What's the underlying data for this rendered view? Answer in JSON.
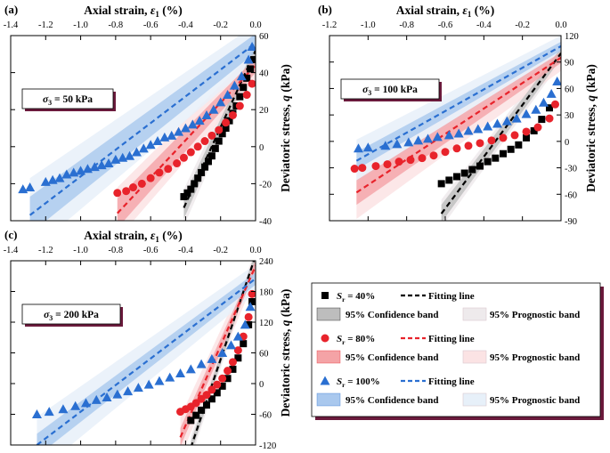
{
  "figure": {
    "legend": {
      "entries": [
        {
          "marker": "square",
          "sr_label": "S",
          "sr_sub": "r",
          "sr_value": " = 40%",
          "line_label": "Fitting line",
          "color": "#000000",
          "conf_label": "95% Confidence band",
          "conf_color": "#bdbdbd",
          "pred_label": "95% Prognostic band",
          "pred_color": "#eeeaec"
        },
        {
          "marker": "circle",
          "sr_label": "S",
          "sr_sub": "r",
          "sr_value": " = 80%",
          "line_label": "Fitting line",
          "color": "#e8232b",
          "conf_label": "95% Confidence band",
          "conf_color": "#f4a3a6",
          "pred_label": "95% Prognostic band",
          "pred_color": "#fbe3e4"
        },
        {
          "marker": "triangle",
          "sr_label": "S",
          "sr_sub": "r",
          "sr_value": " = 100%",
          "line_label": "Fitting line",
          "color": "#2a6fd1",
          "conf_label": "95% Confidence band",
          "conf_color": "#a9c8ee",
          "pred_label": "95% Prognostic band",
          "pred_color": "#e7f0f9"
        }
      ]
    }
  },
  "chart_data": [
    {
      "type": "scatter",
      "panel_label": "(a)",
      "condition": {
        "sigma": "σ",
        "sub": "3",
        "text": " = 50 kPa"
      },
      "xlabel": "Axial strain, ",
      "xlabel_symbol": "ε",
      "xlabel_sub": "1",
      "xlabel_unit": " (%)",
      "ylabel": "Deviatoric stress, ",
      "ylabel_symbol": "q",
      "ylabel_unit": " (kPa)",
      "xlim": [
        -1.4,
        0.0
      ],
      "ylim": [
        -40,
        60
      ],
      "xticks": [
        "-1.4",
        "-1.2",
        "-1.0",
        "-0.8",
        "-0.6",
        "-0.4",
        "-0.2",
        "0.0"
      ],
      "xtick_values": [
        -1.4,
        -1.2,
        -1.0,
        -0.8,
        -0.6,
        -0.4,
        -0.2,
        0.0
      ],
      "yticks": [
        "-40",
        "-20",
        "0",
        "20",
        "40",
        "60"
      ],
      "ytick_values": [
        -40,
        -20,
        0,
        20,
        40,
        60
      ],
      "series": [
        {
          "name": "Sr = 40%",
          "color": "#000000",
          "marker": "square",
          "x": [
            -0.41,
            -0.39,
            -0.37,
            -0.35,
            -0.33,
            -0.31,
            -0.29,
            -0.27,
            -0.25,
            -0.23,
            -0.21,
            -0.19,
            -0.17,
            -0.15,
            -0.13,
            -0.11,
            -0.09,
            -0.07,
            -0.05,
            -0.03,
            -0.01
          ],
          "y": [
            -27,
            -25,
            -23,
            -20,
            -17,
            -14,
            -11,
            -8,
            -5,
            -1,
            3,
            7,
            10,
            14,
            18,
            22,
            27,
            32,
            37,
            42,
            47
          ],
          "fit": [
            [
              -0.41,
              -33
            ],
            [
              0.0,
              52
            ]
          ],
          "conf": [
            6,
            3
          ],
          "pred": [
            10,
            6
          ]
        },
        {
          "name": "Sr = 80%",
          "color": "#e8232b",
          "marker": "circle",
          "x": [
            -0.79,
            -0.74,
            -0.7,
            -0.65,
            -0.6,
            -0.55,
            -0.5,
            -0.45,
            -0.41,
            -0.37,
            -0.33,
            -0.29,
            -0.25,
            -0.21,
            -0.17,
            -0.13,
            -0.09,
            -0.05,
            -0.02
          ],
          "y": [
            -25,
            -24,
            -22,
            -20,
            -17,
            -14,
            -12,
            -9,
            -6,
            -3,
            0,
            3,
            6,
            9,
            13,
            17,
            22,
            28,
            34
          ],
          "fit": [
            [
              -0.79,
              -36
            ],
            [
              0.0,
              44
            ]
          ],
          "conf": [
            8,
            4
          ],
          "pred": [
            14,
            8
          ]
        },
        {
          "name": "Sr = 100%",
          "color": "#2a6fd1",
          "marker": "triangle",
          "x": [
            -1.33,
            -1.29,
            -1.2,
            -1.16,
            -1.12,
            -1.08,
            -1.04,
            -1.0,
            -0.96,
            -0.92,
            -0.88,
            -0.84,
            -0.8,
            -0.76,
            -0.72,
            -0.68,
            -0.64,
            -0.6,
            -0.56,
            -0.52,
            -0.48,
            -0.44,
            -0.4,
            -0.36,
            -0.32,
            -0.28,
            -0.24,
            -0.2,
            -0.16,
            -0.12,
            -0.08,
            -0.04,
            -0.02
          ],
          "y": [
            -23,
            -22,
            -19,
            -18,
            -17,
            -15,
            -14,
            -13,
            -12,
            -11,
            -10,
            -9,
            -7,
            -6,
            -5,
            -3,
            -1,
            1,
            3,
            5,
            6,
            8,
            10,
            12,
            14,
            17,
            20,
            24,
            28,
            33,
            38,
            47,
            54
          ],
          "fit": [
            [
              -1.29,
              -37
            ],
            [
              0.0,
              56
            ]
          ],
          "conf": [
            10,
            5
          ],
          "pred": [
            20,
            10
          ]
        }
      ]
    },
    {
      "type": "scatter",
      "panel_label": "(b)",
      "condition": {
        "sigma": "σ",
        "sub": "3",
        "text": " = 100 kPa"
      },
      "xlabel": "Axial strain, ",
      "xlabel_symbol": "ε",
      "xlabel_sub": "1",
      "xlabel_unit": " (%)",
      "ylabel": "Deviatoric stress, ",
      "ylabel_symbol": "q",
      "ylabel_unit": " (kPa)",
      "xlim": [
        -1.2,
        0.0
      ],
      "ylim": [
        -90,
        120
      ],
      "xticks": [
        "-1.2",
        "-1.0",
        "-0.8",
        "-0.6",
        "-0.4",
        "-0.2",
        "0.0"
      ],
      "xtick_values": [
        -1.2,
        -1.0,
        -0.8,
        -0.6,
        -0.4,
        -0.2,
        0.0
      ],
      "yticks": [
        "-90",
        "-60",
        "-30",
        "0",
        "30",
        "60",
        "90",
        "120"
      ],
      "ytick_values": [
        -90,
        -60,
        -30,
        0,
        30,
        60,
        90,
        120
      ],
      "series": [
        {
          "name": "Sr = 40%",
          "color": "#000000",
          "marker": "square",
          "x": [
            -0.62,
            -0.58,
            -0.54,
            -0.5,
            -0.46,
            -0.42,
            -0.38,
            -0.34,
            -0.3,
            -0.26,
            -0.22,
            -0.18,
            -0.14,
            -0.1,
            -0.06
          ],
          "y": [
            -48,
            -44,
            -40,
            -36,
            -32,
            -28,
            -23,
            -19,
            -14,
            -9,
            -4,
            4,
            12,
            25,
            38
          ],
          "fit": [
            [
              -0.62,
              -82
            ],
            [
              0.0,
              100
            ]
          ],
          "conf": [
            10,
            6
          ],
          "pred": [
            16,
            10
          ]
        },
        {
          "name": "Sr = 80%",
          "color": "#e8232b",
          "marker": "circle",
          "x": [
            -1.07,
            -1.03,
            -0.96,
            -0.9,
            -0.84,
            -0.78,
            -0.72,
            -0.66,
            -0.6,
            -0.54,
            -0.48,
            -0.42,
            -0.36,
            -0.3,
            -0.24,
            -0.18,
            -0.12,
            -0.06,
            -0.03
          ],
          "y": [
            -31,
            -30,
            -28,
            -26,
            -23,
            -21,
            -19,
            -16,
            -12,
            -8,
            -5,
            -2,
            1,
            4,
            7,
            11,
            16,
            26,
            42
          ],
          "fit": [
            [
              -1.06,
              -58
            ],
            [
              0.0,
              95
            ]
          ],
          "conf": [
            14,
            6
          ],
          "pred": [
            30,
            15
          ]
        },
        {
          "name": "Sr = 100%",
          "color": "#2a6fd1",
          "marker": "triangle",
          "x": [
            -1.05,
            -1.0,
            -0.91,
            -0.85,
            -0.79,
            -0.74,
            -0.69,
            -0.64,
            -0.58,
            -0.53,
            -0.48,
            -0.43,
            -0.38,
            -0.33,
            -0.28,
            -0.23,
            -0.18,
            -0.13,
            -0.09,
            -0.05,
            -0.02
          ],
          "y": [
            -8,
            -7,
            -5,
            -3,
            -1,
            1,
            3,
            5,
            7,
            9,
            12,
            14,
            17,
            20,
            23,
            26,
            31,
            36,
            44,
            54,
            68
          ],
          "fit": [
            [
              -1.06,
              -22
            ],
            [
              0.0,
              108
            ]
          ],
          "conf": [
            10,
            5
          ],
          "pred": [
            24,
            12
          ]
        }
      ]
    },
    {
      "type": "scatter",
      "panel_label": "(c)",
      "condition": {
        "sigma": "σ",
        "sub": "3",
        "text": " = 200 kPa"
      },
      "xlabel": "Axial strain, ",
      "xlabel_symbol": "ε",
      "xlabel_sub": "1",
      "xlabel_unit": " (%)",
      "ylabel": "Deviatoric stress, ",
      "ylabel_symbol": "q",
      "ylabel_unit": " (kPa)",
      "xlim": [
        -1.4,
        0.0
      ],
      "ylim": [
        -120,
        240
      ],
      "xticks": [
        "-1.4",
        "-1.2",
        "-1.0",
        "-0.8",
        "-0.6",
        "-0.4",
        "-0.2",
        "0.0"
      ],
      "xtick_values": [
        -1.4,
        -1.2,
        -1.0,
        -0.8,
        -0.6,
        -0.4,
        -0.2,
        0.0
      ],
      "yticks": [
        "-120",
        "-60",
        "0",
        "60",
        "120",
        "180",
        "240"
      ],
      "ytick_values": [
        -120,
        -60,
        0,
        60,
        120,
        180,
        240
      ],
      "series": [
        {
          "name": "Sr = 40%",
          "color": "#000000",
          "marker": "square",
          "x": [
            -0.37,
            -0.34,
            -0.31,
            -0.28,
            -0.25,
            -0.22,
            -0.19,
            -0.16,
            -0.13,
            -0.1,
            -0.07,
            -0.04,
            -0.02
          ],
          "y": [
            -72,
            -62,
            -52,
            -42,
            -30,
            -18,
            -5,
            10,
            28,
            50,
            78,
            115,
            160
          ],
          "fit": [
            [
              -0.37,
              -125
            ],
            [
              0.0,
              250
            ]
          ],
          "conf": [
            12,
            8
          ],
          "pred": [
            22,
            14
          ]
        },
        {
          "name": "Sr = 80%",
          "color": "#e8232b",
          "marker": "circle",
          "x": [
            -0.43,
            -0.4,
            -0.37,
            -0.34,
            -0.31,
            -0.28,
            -0.25,
            -0.22,
            -0.19,
            -0.16,
            -0.13,
            -0.1,
            -0.07,
            -0.04,
            -0.02
          ],
          "y": [
            -55,
            -50,
            -45,
            -38,
            -30,
            -22,
            -12,
            -2,
            10,
            25,
            42,
            65,
            92,
            130,
            175
          ],
          "fit": [
            [
              -0.43,
              -105
            ],
            [
              0.0,
              230
            ]
          ],
          "conf": [
            18,
            10
          ],
          "pred": [
            40,
            22
          ]
        },
        {
          "name": "Sr = 100%",
          "color": "#2a6fd1",
          "marker": "triangle",
          "x": [
            -1.25,
            -1.18,
            -1.1,
            -1.03,
            -0.97,
            -0.91,
            -0.85,
            -0.79,
            -0.73,
            -0.67,
            -0.61,
            -0.55,
            -0.49,
            -0.43,
            -0.37,
            -0.31,
            -0.25,
            -0.19,
            -0.14,
            -0.1,
            -0.06,
            -0.03
          ],
          "y": [
            -60,
            -55,
            -50,
            -44,
            -38,
            -32,
            -27,
            -21,
            -15,
            -8,
            -2,
            5,
            12,
            20,
            28,
            38,
            48,
            60,
            75,
            92,
            115,
            150
          ],
          "fit": [
            [
              -1.25,
              -120
            ],
            [
              0.0,
              205
            ]
          ],
          "conf": [
            22,
            12
          ],
          "pred": [
            55,
            28
          ]
        }
      ]
    }
  ]
}
